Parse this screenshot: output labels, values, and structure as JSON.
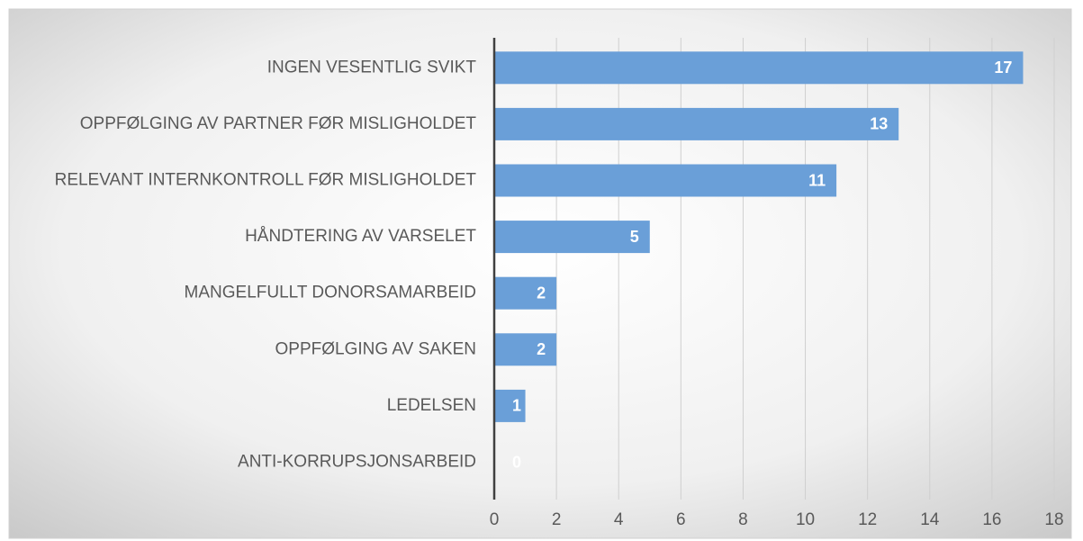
{
  "chart_data": {
    "type": "bar",
    "orientation": "horizontal",
    "categories": [
      "INGEN VESENTLIG SVIKT",
      "OPPFØLGING AV PARTNER FØR MISLIGHOLDET",
      "RELEVANT INTERNKONTROLL FØR MISLIGHOLDET",
      "HÅNDTERING AV VARSELET",
      "MANGELFULLT DONORSAMARBEID",
      "OPPFØLGING AV SAKEN",
      "LEDELSEN",
      "ANTI-KORRUPSJONSARBEID"
    ],
    "values": [
      17,
      13,
      11,
      5,
      2,
      2,
      1,
      0
    ],
    "color": "#6a9fd8",
    "xlim": [
      0,
      18
    ],
    "xticks": [
      0,
      2,
      4,
      6,
      8,
      10,
      12,
      14,
      16,
      18
    ],
    "grid": true
  }
}
